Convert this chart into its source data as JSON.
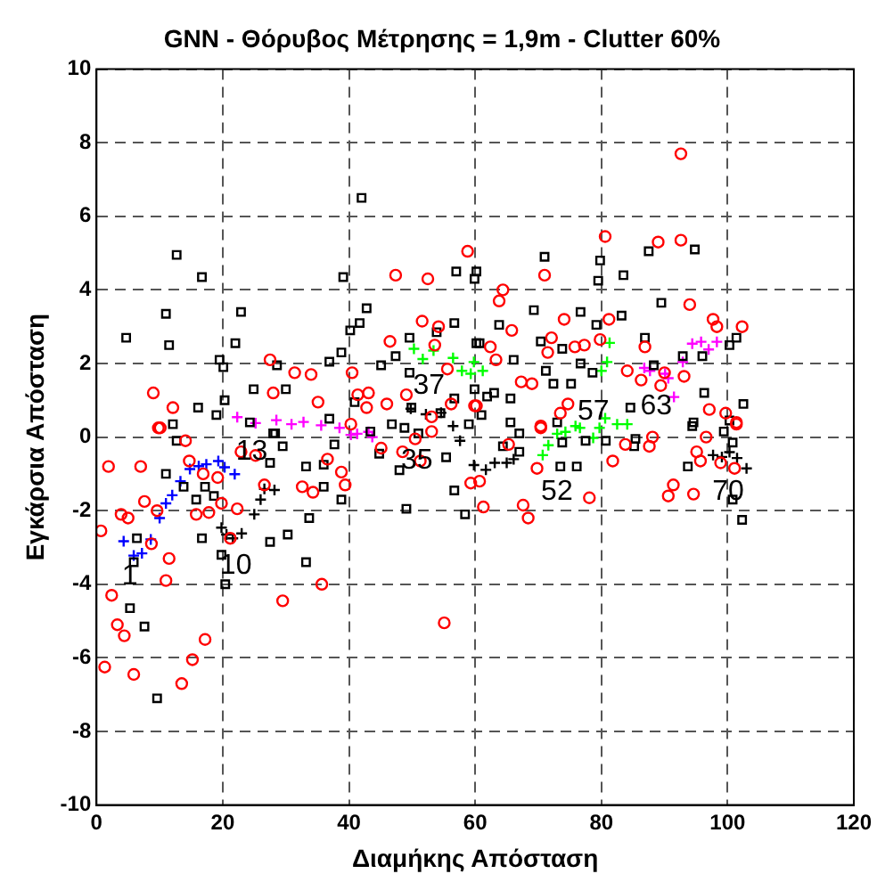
{
  "chart_data": {
    "type": "scatter",
    "title": "GNN - Θόρυβος Μέτρησης = 1,9m - Clutter 60%",
    "xlabel": "Διαμήκης Απόσταση",
    "ylabel": "Εγκάρσια Απόσταση",
    "xlim": [
      0,
      120
    ],
    "xticks": [
      0,
      20,
      40,
      60,
      80,
      100,
      120
    ],
    "ylim": [
      -10,
      10
    ],
    "yticks": [
      -10,
      -8,
      -6,
      -4,
      -2,
      0,
      2,
      4,
      6,
      8,
      10
    ],
    "grid": true,
    "line_style": "dashed",
    "legend": false,
    "series": [
      {
        "color": "#ff0000",
        "marker": "circle",
        "x": [
          92.6,
          80.6,
          89,
          92.6,
          71,
          64.4,
          63.8,
          65.8,
          94,
          97.7,
          98.3,
          102.3,
          74.1,
          81.2,
          79.8,
          77.3,
          75.8,
          72.1,
          71.5,
          86.9,
          62.4,
          63.3,
          84.1,
          90,
          93.1,
          86.3,
          89.4,
          67.3,
          69,
          74.7,
          73.5,
          97.1,
          99.7,
          101.4,
          70.4,
          60.2,
          58.8,
          47.4,
          52.5,
          51.6,
          54.2,
          46.5,
          53.6,
          27.5,
          31.4,
          34,
          40.5,
          9,
          28,
          43.1,
          41.4,
          46,
          42.8,
          35.1,
          12.1,
          55.6,
          56.2,
          59.9,
          49.1,
          53.1,
          40.3,
          9.8,
          1.9,
          7,
          10.1,
          14.1,
          14.7,
          16.9,
          19.2,
          22.9,
          25.2,
          7.6,
          9.6,
          3.9,
          5,
          0.7,
          8.7,
          11.5,
          15.8,
          17.8,
          19.8,
          22.3,
          21.2,
          26.6,
          32.6,
          34.3,
          36.6,
          38.8,
          39.4,
          45.1,
          48.5,
          50.5,
          51.3,
          53.1,
          59.3,
          11,
          2.4,
          29.5,
          35.7,
          3.3,
          4.4,
          17.2,
          1.3,
          15.2,
          5.9,
          13.5,
          55.1,
          70.4,
          65.3,
          60.7,
          61.3,
          67.6,
          68.4,
          69.8,
          78.1,
          81.8,
          83.8,
          87.6,
          88.1,
          91.4,
          90.6,
          94.6,
          95.1,
          95.7,
          96.6,
          98.9,
          101.1,
          101.4
        ],
        "values": [
          7.7,
          5.45,
          5.3,
          5.35,
          4.4,
          4.0,
          3.7,
          2.9,
          3.6,
          3.2,
          3.0,
          3.0,
          3.2,
          3.2,
          2.65,
          2.5,
          2.45,
          2.7,
          2.3,
          2.45,
          2.45,
          2.1,
          1.8,
          1.75,
          1.65,
          1.55,
          1.4,
          1.5,
          1.45,
          0.9,
          0.65,
          0.75,
          0.65,
          0.4,
          0.3,
          0.85,
          5.05,
          4.4,
          4.3,
          3.15,
          3.0,
          2.6,
          2.5,
          2.1,
          1.75,
          1.7,
          1.75,
          1.2,
          1.2,
          1.2,
          1.15,
          0.9,
          0.8,
          0.95,
          0.8,
          1.85,
          0.9,
          0.85,
          1.15,
          0.55,
          0.35,
          0.25,
          -0.8,
          -0.8,
          0.25,
          -0.1,
          -0.65,
          -1.0,
          -1.1,
          -0.4,
          -0.5,
          -1.75,
          -2.0,
          -2.1,
          -2.2,
          -2.55,
          -2.9,
          -3.3,
          -2.1,
          -2.05,
          -1.8,
          -1.95,
          -2.75,
          -1.3,
          -1.35,
          -1.5,
          -0.6,
          -0.95,
          -1.3,
          -0.3,
          -0.4,
          -0.05,
          -0.65,
          0.15,
          -1.25,
          -3.9,
          -4.3,
          -4.45,
          -4.0,
          -5.1,
          -5.4,
          -5.5,
          -6.25,
          -6.05,
          -6.45,
          -6.7,
          -5.05,
          0.25,
          -0.2,
          -1.2,
          -1.9,
          -1.85,
          -2.2,
          -0.85,
          -1.65,
          -0.65,
          -0.2,
          -0.25,
          0.0,
          -1.3,
          -1.6,
          -1.55,
          -0.4,
          -0.65,
          0.0,
          -0.7,
          -0.85,
          0.35
        ]
      },
      {
        "color": "#000000",
        "marker": "square",
        "x": [
          42,
          12.7,
          16.7,
          39.1,
          57,
          59.9,
          11,
          22.9,
          42.8,
          41.7,
          56.7,
          4.7,
          11.5,
          22,
          40.2,
          38.8,
          49.6,
          47.4,
          19.5,
          28.6,
          36.9,
          45.1,
          49.6,
          53.9,
          60.2,
          20.1,
          24.9,
          30,
          16.1,
          20.3,
          19,
          40.9,
          36.9,
          49.9,
          56.7,
          59.9,
          12.1,
          24.3,
          28.3,
          46.8,
          54.5,
          59,
          87.5,
          94.8,
          71,
          79.8,
          60.2,
          79.5,
          83.5,
          69.3,
          76.7,
          89.5,
          83.2,
          63.8,
          79.2,
          60.7,
          70.4,
          73.8,
          86.9,
          100.3,
          101.4,
          66.1,
          76.7,
          71.2,
          88.3,
          96,
          92.9,
          72.4,
          75.2,
          78.6,
          63,
          61.9,
          65.6,
          61,
          96.3,
          102.5,
          84.6,
          94.6,
          100.3,
          65.6,
          73,
          12.7,
          11,
          13.8,
          17.2,
          18.6,
          15.8,
          27.5,
          29.5,
          28,
          33.2,
          36,
          36,
          37.7,
          38.8,
          44.8,
          43.4,
          48,
          49.1,
          33.7,
          6.4,
          16.7,
          19.8,
          27.5,
          30.3,
          33.2,
          5.9,
          20.4,
          5.3,
          7.6,
          9.6,
          56.7,
          58.4,
          55.4,
          48.8,
          51,
          64.4,
          67,
          67,
          73.8,
          73.5,
          76.1,
          77.5,
          80.7,
          85.2,
          85.4,
          93.7,
          100.8,
          99.4,
          100.8,
          102.3,
          94.4
        ],
        "values": [
          6.5,
          4.95,
          4.35,
          4.35,
          4.5,
          4.3,
          3.35,
          3.4,
          3.5,
          3.1,
          3.1,
          2.7,
          2.5,
          2.55,
          2.9,
          2.3,
          2.7,
          2.2,
          2.1,
          1.95,
          2.05,
          1.95,
          1.75,
          2.85,
          2.55,
          1.9,
          1.3,
          1.3,
          0.8,
          1.0,
          0.6,
          0.95,
          0.5,
          0.8,
          1.05,
          1.3,
          0.35,
          0.4,
          0.1,
          0.35,
          0.65,
          0.35,
          5.05,
          5.1,
          4.9,
          4.8,
          4.5,
          4.25,
          4.4,
          3.45,
          3.4,
          3.65,
          3.3,
          3.05,
          3.05,
          2.55,
          2.6,
          2.4,
          2.7,
          2.5,
          2.7,
          2.1,
          2.0,
          1.8,
          1.95,
          2.2,
          2.2,
          1.45,
          1.45,
          1.75,
          1.2,
          1.1,
          1.05,
          0.6,
          1.2,
          0.9,
          0.8,
          0.4,
          0.45,
          0.4,
          0.4,
          -0.1,
          -1.0,
          -1.35,
          -1.35,
          -1.6,
          -1.7,
          -0.7,
          -0.25,
          0.1,
          -0.8,
          -0.75,
          -1.35,
          -0.2,
          -1.7,
          -0.45,
          0.15,
          -0.9,
          -1.95,
          -2.2,
          -2.75,
          -2.75,
          -3.2,
          -2.85,
          -2.65,
          -3.4,
          -3.4,
          -4.0,
          -4.65,
          -5.15,
          -7.1,
          -1.45,
          -2.1,
          -0.55,
          0.25,
          0.1,
          -0.25,
          -0.4,
          0.1,
          -0.15,
          -0.8,
          -0.8,
          -0.1,
          -0.1,
          -0.25,
          -0.05,
          -0.8,
          -0.15,
          0.15,
          -1.7,
          -2.25,
          0.3
        ]
      },
      {
        "color": "#0000ff",
        "marker": "cross",
        "x": [
          4.3,
          5.9,
          7.2,
          8.6,
          10.0,
          11.0,
          12.0,
          13.3,
          14.8,
          16.2,
          17.4,
          19.3,
          20.3,
          21.9
        ],
        "values": [
          -2.83,
          -3.22,
          -3.16,
          -2.78,
          -2.2,
          -1.8,
          -1.58,
          -1.2,
          -0.87,
          -0.79,
          -0.74,
          -0.65,
          -0.82,
          -1.01
        ]
      },
      {
        "color": "#000000",
        "marker": "cross",
        "x": [
          19.8,
          20.6,
          21.6,
          23.0,
          25.0,
          26.0,
          26.6,
          28.2,
          49.8,
          52.2,
          54.6,
          56.5,
          57.6,
          59.8,
          61.7,
          63.1,
          65,
          66.1,
          97.7,
          99.1,
          100.3,
          101.5,
          103
        ],
        "values": [
          -2.46,
          -2.65,
          -2.75,
          -2.62,
          -2.1,
          -1.7,
          -1.41,
          -1.44,
          0.77,
          0.62,
          0.66,
          0.3,
          -0.1,
          -0.76,
          -0.89,
          -0.7,
          -0.7,
          -0.6,
          -0.49,
          -0.54,
          -0.41,
          -0.57,
          -0.85
        ]
      },
      {
        "color": "#ff00ff",
        "marker": "cross",
        "x": [
          22.3,
          25.2,
          28.5,
          30.9,
          32.8,
          35.6,
          38.5,
          40.3,
          41.3,
          43.1,
          43.7,
          86.8,
          87.7,
          90.1,
          90.6,
          91.5,
          92.9,
          94.4,
          95.8,
          97,
          98.3
        ],
        "values": [
          0.54,
          0.38,
          0.46,
          0.35,
          0.41,
          0.32,
          0.25,
          0.06,
          0.09,
          0.14,
          0.0,
          1.88,
          1.8,
          1.72,
          1.6,
          1.09,
          2.04,
          2.54,
          2.59,
          2.38,
          2.59
        ]
      },
      {
        "color": "#00ff00",
        "marker": "cross",
        "x": [
          50.3,
          51.7,
          53.4,
          56.5,
          57.9,
          59.3,
          59.8,
          61.2,
          70.7,
          71.6,
          73,
          74.3,
          75.9,
          76.6,
          78.7,
          79.7,
          80.6,
          82.5,
          84.1,
          80,
          80.9,
          81.3
        ],
        "values": [
          2.4,
          2.12,
          2.35,
          2.15,
          1.8,
          1.72,
          2.04,
          1.8,
          -0.49,
          -0.22,
          0.09,
          0.14,
          0.3,
          0.25,
          -0.02,
          0.25,
          0.51,
          0.35,
          0.35,
          1.8,
          2.04,
          2.56
        ]
      }
    ],
    "annotations": [
      "1",
      "10",
      "13",
      "35",
      "37",
      "52",
      "57",
      "63",
      "70"
    ]
  }
}
